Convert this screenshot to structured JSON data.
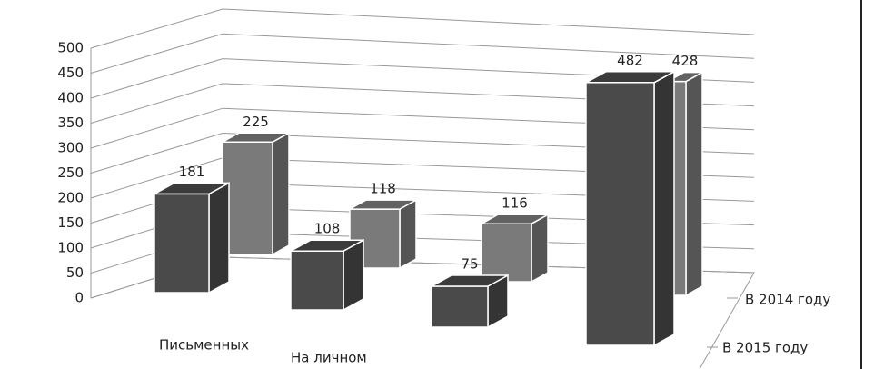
{
  "chart_data": {
    "type": "bar3d",
    "categories": [
      "Письменных",
      "На личном",
      null,
      null
    ],
    "series": [
      {
        "name": "В 2015 году",
        "color": "#4a4a4a",
        "values": [
          181,
          108,
          75,
          482
        ]
      },
      {
        "name": "В 2014 году",
        "color": "#7a7a7a",
        "values": [
          225,
          118,
          116,
          428
        ]
      }
    ],
    "ylim": [
      0,
      500
    ],
    "yticks": [
      0,
      50,
      100,
      150,
      200,
      250,
      300,
      350,
      400,
      450,
      500
    ],
    "grid": true
  }
}
